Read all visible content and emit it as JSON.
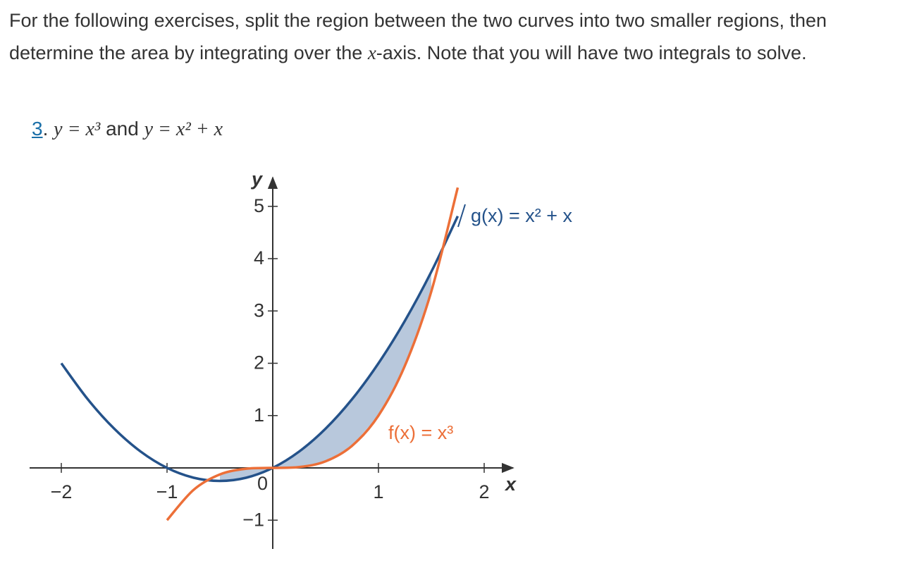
{
  "intro": {
    "before": "For the following exercises, split the region between the two curves into two smaller regions, then determine the area by integrating over the ",
    "variable": "x",
    "after": "-axis. Note that you will have two integrals to solve."
  },
  "exercise": {
    "number": "3",
    "number_suffix": ".",
    "equation_1": "y = x³",
    "joiner": "and",
    "equation_2": "y = x² + x"
  },
  "chart_data": {
    "type": "line",
    "x": [
      -2,
      -1.75,
      -1.5,
      -1.25,
      -1,
      -0.75,
      -0.5,
      -0.25,
      0,
      0.25,
      0.5,
      0.75,
      1,
      1.25,
      1.5,
      1.75
    ],
    "series": [
      {
        "name": "g(x) = x² + x",
        "color": "#24528a",
        "values": [
          2,
          1.3125,
          0.75,
          0.3125,
          0,
          -0.1875,
          -0.25,
          -0.1875,
          0,
          0.3125,
          0.75,
          1.3125,
          2,
          2.8125,
          3.75,
          4.8125
        ]
      },
      {
        "name": "f(x) = x³",
        "color": "#ec6f38",
        "values": [
          null,
          null,
          null,
          null,
          -1,
          -0.421875,
          -0.125,
          -0.015625,
          0,
          0.015625,
          0.125,
          0.421875,
          1,
          1.953125,
          3.375,
          5.359375
        ]
      }
    ],
    "fill_color": "#b8c8dc",
    "xlabel": "x",
    "ylabel": "y",
    "origin_label": "0",
    "xlim": [
      -2.3,
      2.3
    ],
    "ylim": [
      -1.55,
      5.55
    ],
    "xticks": [
      {
        "value": -2,
        "label": "−2"
      },
      {
        "value": -1,
        "label": "−1"
      },
      1,
      2
    ],
    "yticks": [
      {
        "value": -1,
        "label": "−1"
      },
      1,
      2,
      3,
      4,
      5
    ]
  }
}
